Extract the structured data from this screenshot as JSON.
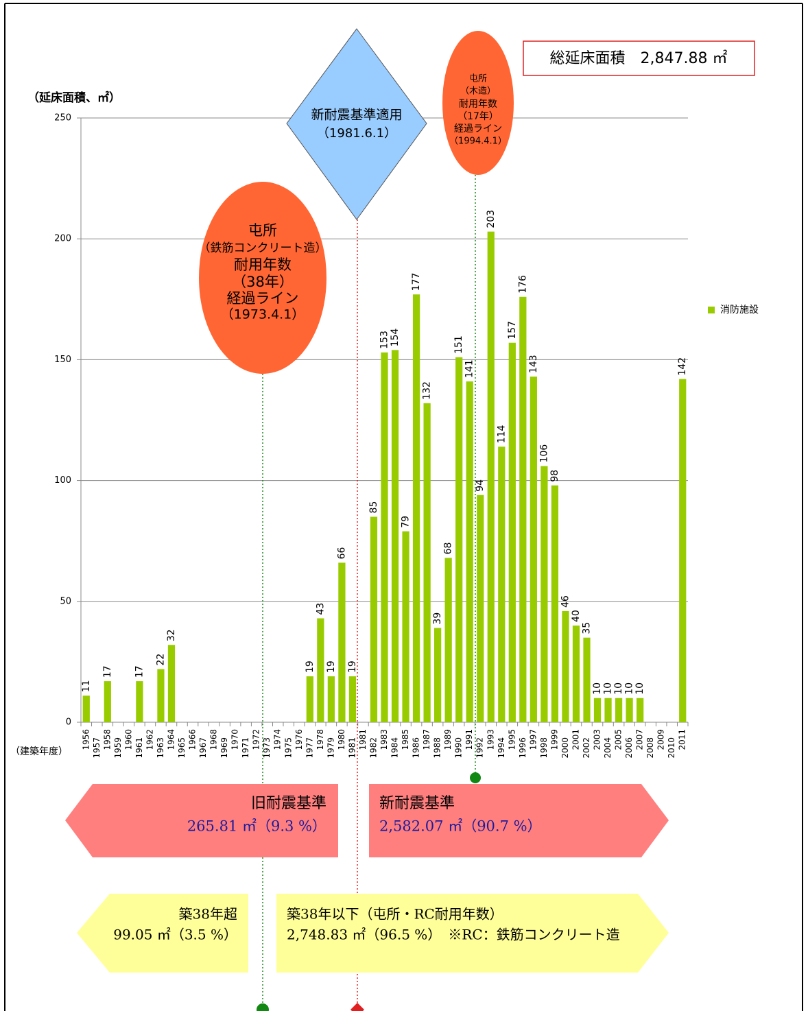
{
  "chart_data": {
    "type": "bar",
    "y_axis_label": "（延床面積、㎡）",
    "x_axis_label": "（建築年度）",
    "total_label": "総延床面積　2,847.88 ㎡",
    "categories": [
      "1956",
      "1957",
      "1958",
      "1959",
      "1960",
      "1961",
      "1962",
      "1963",
      "1964",
      "1965",
      "1966",
      "1967",
      "1968",
      "1969",
      "1970",
      "1971",
      "1972",
      "1973",
      "1974",
      "1975",
      "1976",
      "1977",
      "1978",
      "1979",
      "1980",
      "1981",
      "1981",
      "1982",
      "1983",
      "1984",
      "1985",
      "1986",
      "1987",
      "1988",
      "1989",
      "1990",
      "1991",
      "1992",
      "1993",
      "1994",
      "1995",
      "1996",
      "1997",
      "1998",
      "1999",
      "2000",
      "2001",
      "2002",
      "2003",
      "2004",
      "2005",
      "2006",
      "2007",
      "2008",
      "2009",
      "2010",
      "2011"
    ],
    "series": [
      {
        "name": "消防施設",
        "color": "#99cc00",
        "values": [
          11,
          null,
          17,
          null,
          null,
          17,
          null,
          22,
          32,
          null,
          null,
          null,
          null,
          null,
          null,
          null,
          null,
          null,
          null,
          null,
          null,
          19,
          43,
          19,
          66,
          19,
          null,
          85,
          153,
          154,
          79,
          177,
          132,
          39,
          68,
          151,
          141,
          94,
          203,
          114,
          157,
          176,
          143,
          106,
          98,
          46,
          40,
          35,
          10,
          10,
          10,
          10,
          10,
          null,
          null,
          null,
          142
        ]
      }
    ],
    "ylim": [
      0,
      250
    ],
    "yticks": [
      0,
      50,
      100,
      150,
      200,
      250
    ],
    "grid": true,
    "legend": "right",
    "annotations": [
      {
        "lines": [
          "屯所",
          "（鉄筋コンクリート造）",
          "耐用年数",
          "（38年）",
          "経過ライン",
          "（1973.4.1）"
        ]
      },
      {
        "lines": [
          "新耐震基準適用",
          "（1981.6.1）"
        ]
      },
      {
        "lines": [
          "屯所",
          "（木造）",
          "耐用年数",
          "（17年）",
          "経過ライン",
          "（1994.4.1）"
        ]
      }
    ],
    "bands": [
      {
        "title": "旧耐震基準",
        "detail": "265.81 ㎡（9.3 %）"
      },
      {
        "title": "新耐震基準",
        "detail": "2,582.07 ㎡（90.7 %）"
      },
      {
        "title": "築38年超",
        "detail": "99.05 ㎡（3.5 %）"
      },
      {
        "title": "築38年以下（屯所・RC耐用年数）",
        "detail": "2,748.83 ㎡（96.5 %）　※RC：鉄筋コンクリート造"
      }
    ]
  }
}
